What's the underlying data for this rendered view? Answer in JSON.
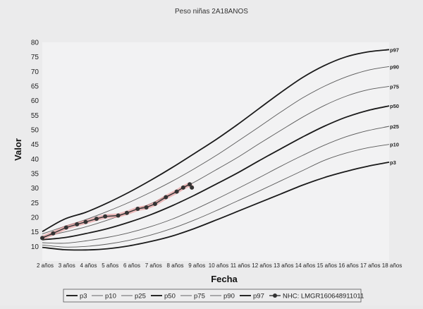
{
  "chart_data": {
    "type": "line",
    "title": "Peso niñas 2A18ANOS",
    "xlabel": "Fecha",
    "ylabel": "Valor",
    "x_ticks": [
      "2 años",
      "3 años",
      "4 años",
      "5 años",
      "6 años",
      "7 años",
      "8 años",
      "9 años",
      "10 años",
      "11 años",
      "12 años",
      "13 años",
      "14 años",
      "15 años",
      "16 años",
      "17 años",
      "18 años"
    ],
    "xlim": [
      2,
      18
    ],
    "ylim": [
      5,
      80
    ],
    "y_ticks": [
      10,
      15,
      20,
      25,
      30,
      35,
      40,
      45,
      50,
      55,
      60,
      65,
      70,
      75,
      80
    ],
    "grid": false,
    "legend_position": "bottom",
    "x_ages": [
      2,
      3,
      4,
      5,
      6,
      7,
      8,
      9,
      10,
      11,
      12,
      13,
      14,
      15,
      16,
      17,
      18
    ],
    "series": [
      {
        "name": "p3",
        "end_label": "p3",
        "weight": "heavy",
        "values": [
          9.7,
          8.9,
          8.8,
          9.2,
          10.2,
          11.7,
          13.6,
          16.1,
          19.0,
          22.0,
          25.0,
          28.0,
          31.0,
          33.6,
          35.7,
          37.5,
          38.9
        ]
      },
      {
        "name": "p10",
        "end_label": "p10",
        "weight": "light",
        "values": [
          10.5,
          9.8,
          10.0,
          10.8,
          12.1,
          13.9,
          16.2,
          19.0,
          22.2,
          25.6,
          29.0,
          32.5,
          36.0,
          39.5,
          42.0,
          43.8,
          45.0
        ]
      },
      {
        "name": "p25",
        "end_label": "p25",
        "weight": "light",
        "values": [
          11.3,
          11.1,
          11.9,
          13.1,
          14.7,
          16.8,
          19.4,
          22.6,
          26.1,
          29.8,
          33.6,
          37.5,
          41.2,
          44.7,
          47.6,
          49.7,
          51.2
        ]
      },
      {
        "name": "p50",
        "end_label": "p50",
        "weight": "heavy",
        "values": [
          12.3,
          13.0,
          14.4,
          16.1,
          18.3,
          20.9,
          24.0,
          27.5,
          31.3,
          35.2,
          39.4,
          43.5,
          47.5,
          51.2,
          54.3,
          56.6,
          58.2
        ]
      },
      {
        "name": "p75",
        "end_label": "p75",
        "weight": "light",
        "values": [
          13.3,
          14.9,
          16.7,
          19.0,
          21.7,
          24.7,
          28.2,
          32.0,
          36.2,
          40.5,
          45.2,
          49.8,
          54.3,
          58.3,
          61.5,
          63.7,
          64.9
        ]
      },
      {
        "name": "p90",
        "end_label": "p90",
        "weight": "light",
        "values": [
          14.3,
          16.8,
          19.2,
          22.0,
          25.1,
          28.6,
          32.4,
          36.6,
          41.1,
          46.0,
          51.0,
          56.1,
          60.9,
          64.9,
          68.1,
          70.4,
          71.7
        ]
      },
      {
        "name": "p97",
        "end_label": "p97",
        "weight": "heavy",
        "values": [
          15.1,
          19.3,
          21.7,
          24.9,
          28.6,
          32.7,
          37.1,
          41.8,
          46.6,
          51.8,
          57.3,
          62.8,
          67.9,
          72.0,
          75.0,
          76.7,
          77.5
        ]
      },
      {
        "name": "NHC: LMGR160648911011",
        "weight": "patient",
        "points": [
          [
            2.0,
            12.9
          ],
          [
            2.5,
            14.5
          ],
          [
            3.1,
            16.5
          ],
          [
            3.6,
            17.6
          ],
          [
            4.0,
            18.4
          ],
          [
            4.5,
            19.5
          ],
          [
            4.9,
            20.3
          ],
          [
            5.5,
            20.6
          ],
          [
            5.9,
            21.5
          ],
          [
            6.4,
            22.9
          ],
          [
            6.8,
            23.4
          ],
          [
            7.2,
            24.6
          ],
          [
            7.7,
            26.9
          ],
          [
            8.2,
            28.8
          ],
          [
            8.5,
            30.2
          ],
          [
            8.8,
            31.3
          ],
          [
            8.9,
            30.2
          ]
        ]
      }
    ]
  }
}
